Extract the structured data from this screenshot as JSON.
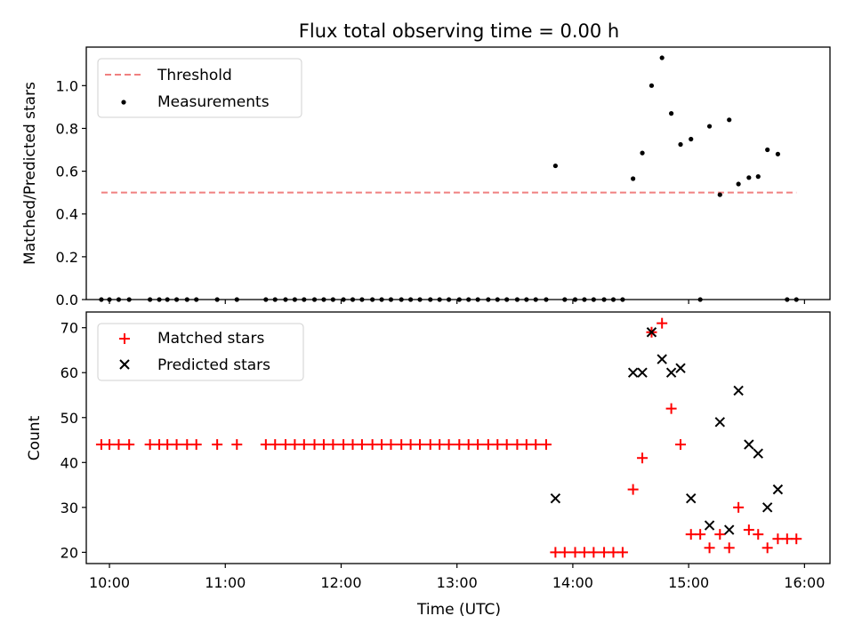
{
  "figure_title": "Flux total observing time = 0.00 h",
  "chart_data": [
    {
      "type": "scatter",
      "xlabel": "",
      "ylabel": "Matched/Predicted stars",
      "xlim": [
        9.8,
        16.22
      ],
      "ylim": [
        0.0,
        1.18
      ],
      "yticks": [
        0.0,
        0.2,
        0.4,
        0.6,
        0.8,
        1.0
      ],
      "ytick_labels": [
        "0.0",
        "0.2",
        "0.4",
        "0.6",
        "0.8",
        "1.0"
      ],
      "xticks": [
        10,
        11,
        12,
        13,
        14,
        15,
        16
      ],
      "xtick_labels": [],
      "legend_position": "top-left",
      "grid": false,
      "threshold": {
        "name": "Threshold",
        "value": 0.5,
        "x_range": [
          9.93,
          15.93
        ],
        "color": "#f08080",
        "style": "dashed"
      },
      "series": [
        {
          "name": "Measurements",
          "marker": "dot",
          "color": "#000000",
          "points": [
            [
              9.93,
              0
            ],
            [
              10.0,
              0
            ],
            [
              10.08,
              0
            ],
            [
              10.17,
              0
            ],
            [
              10.35,
              0
            ],
            [
              10.43,
              0
            ],
            [
              10.5,
              0
            ],
            [
              10.58,
              0
            ],
            [
              10.67,
              0
            ],
            [
              10.75,
              0
            ],
            [
              10.93,
              0
            ],
            [
              11.1,
              0
            ],
            [
              11.35,
              0
            ],
            [
              11.43,
              0
            ],
            [
              11.52,
              0
            ],
            [
              11.6,
              0
            ],
            [
              11.68,
              0
            ],
            [
              11.77,
              0
            ],
            [
              11.85,
              0
            ],
            [
              11.93,
              0
            ],
            [
              12.02,
              0
            ],
            [
              12.1,
              0
            ],
            [
              12.18,
              0
            ],
            [
              12.27,
              0
            ],
            [
              12.35,
              0
            ],
            [
              12.43,
              0
            ],
            [
              12.52,
              0
            ],
            [
              12.6,
              0
            ],
            [
              12.68,
              0
            ],
            [
              12.77,
              0
            ],
            [
              12.85,
              0
            ],
            [
              12.93,
              0
            ],
            [
              13.02,
              0
            ],
            [
              13.1,
              0
            ],
            [
              13.18,
              0
            ],
            [
              13.27,
              0
            ],
            [
              13.35,
              0
            ],
            [
              13.43,
              0
            ],
            [
              13.52,
              0
            ],
            [
              13.6,
              0
            ],
            [
              13.68,
              0
            ],
            [
              13.77,
              0
            ],
            [
              13.93,
              0
            ],
            [
              14.02,
              0
            ],
            [
              14.1,
              0
            ],
            [
              14.18,
              0
            ],
            [
              14.27,
              0
            ],
            [
              14.35,
              0
            ],
            [
              14.43,
              0
            ],
            [
              13.85,
              0.625
            ],
            [
              14.52,
              0.565
            ],
            [
              14.6,
              0.685
            ],
            [
              14.68,
              1.0
            ],
            [
              14.77,
              1.13
            ],
            [
              14.85,
              0.87
            ],
            [
              14.93,
              0.725
            ],
            [
              15.02,
              0.75
            ],
            [
              15.1,
              0
            ],
            [
              15.18,
              0.81
            ],
            [
              15.27,
              0.49
            ],
            [
              15.35,
              0.84
            ],
            [
              15.43,
              0.54
            ],
            [
              15.52,
              0.57
            ],
            [
              15.6,
              0.575
            ],
            [
              15.68,
              0.7
            ],
            [
              15.77,
              0.68
            ],
            [
              15.85,
              0
            ],
            [
              15.93,
              0
            ]
          ]
        }
      ]
    },
    {
      "type": "scatter",
      "xlabel": "Time (UTC)",
      "ylabel": "Count",
      "xlim": [
        9.8,
        16.22
      ],
      "ylim": [
        17.5,
        73.5
      ],
      "yticks": [
        20,
        30,
        40,
        50,
        60,
        70
      ],
      "ytick_labels": [
        "20",
        "30",
        "40",
        "50",
        "60",
        "70"
      ],
      "xticks": [
        10,
        11,
        12,
        13,
        14,
        15,
        16
      ],
      "xtick_labels": [
        "10:00",
        "11:00",
        "12:00",
        "13:00",
        "14:00",
        "15:00",
        "16:00"
      ],
      "legend_position": "top-left",
      "grid": false,
      "series": [
        {
          "name": "Matched stars",
          "marker": "plus",
          "color": "#ff0000",
          "points": [
            [
              9.93,
              44
            ],
            [
              10.0,
              44
            ],
            [
              10.08,
              44
            ],
            [
              10.17,
              44
            ],
            [
              10.35,
              44
            ],
            [
              10.43,
              44
            ],
            [
              10.5,
              44
            ],
            [
              10.58,
              44
            ],
            [
              10.67,
              44
            ],
            [
              10.75,
              44
            ],
            [
              10.93,
              44
            ],
            [
              11.1,
              44
            ],
            [
              11.35,
              44
            ],
            [
              11.43,
              44
            ],
            [
              11.52,
              44
            ],
            [
              11.6,
              44
            ],
            [
              11.68,
              44
            ],
            [
              11.77,
              44
            ],
            [
              11.85,
              44
            ],
            [
              11.93,
              44
            ],
            [
              12.02,
              44
            ],
            [
              12.1,
              44
            ],
            [
              12.18,
              44
            ],
            [
              12.27,
              44
            ],
            [
              12.35,
              44
            ],
            [
              12.43,
              44
            ],
            [
              12.52,
              44
            ],
            [
              12.6,
              44
            ],
            [
              12.68,
              44
            ],
            [
              12.77,
              44
            ],
            [
              12.85,
              44
            ],
            [
              12.93,
              44
            ],
            [
              13.02,
              44
            ],
            [
              13.1,
              44
            ],
            [
              13.18,
              44
            ],
            [
              13.27,
              44
            ],
            [
              13.35,
              44
            ],
            [
              13.43,
              44
            ],
            [
              13.52,
              44
            ],
            [
              13.6,
              44
            ],
            [
              13.68,
              44
            ],
            [
              13.77,
              44
            ],
            [
              13.85,
              20
            ],
            [
              13.93,
              20
            ],
            [
              14.02,
              20
            ],
            [
              14.1,
              20
            ],
            [
              14.18,
              20
            ],
            [
              14.27,
              20
            ],
            [
              14.35,
              20
            ],
            [
              14.43,
              20
            ],
            [
              14.52,
              34
            ],
            [
              14.6,
              41
            ],
            [
              14.68,
              69
            ],
            [
              14.77,
              71
            ],
            [
              14.85,
              52
            ],
            [
              14.93,
              44
            ],
            [
              15.02,
              24
            ],
            [
              15.1,
              24
            ],
            [
              15.18,
              21
            ],
            [
              15.27,
              24
            ],
            [
              15.35,
              21
            ],
            [
              15.43,
              30
            ],
            [
              15.52,
              25
            ],
            [
              15.6,
              24
            ],
            [
              15.68,
              21
            ],
            [
              15.77,
              23
            ],
            [
              15.85,
              23
            ],
            [
              15.93,
              23
            ]
          ]
        },
        {
          "name": "Predicted stars",
          "marker": "x",
          "color": "#000000",
          "points": [
            [
              13.85,
              32
            ],
            [
              14.52,
              60
            ],
            [
              14.6,
              60
            ],
            [
              14.68,
              69
            ],
            [
              14.77,
              63
            ],
            [
              14.85,
              60
            ],
            [
              14.93,
              61
            ],
            [
              15.02,
              32
            ],
            [
              15.18,
              26
            ],
            [
              15.27,
              49
            ],
            [
              15.35,
              25
            ],
            [
              15.43,
              56
            ],
            [
              15.52,
              44
            ],
            [
              15.6,
              42
            ],
            [
              15.68,
              30
            ],
            [
              15.77,
              34
            ]
          ]
        }
      ]
    }
  ]
}
